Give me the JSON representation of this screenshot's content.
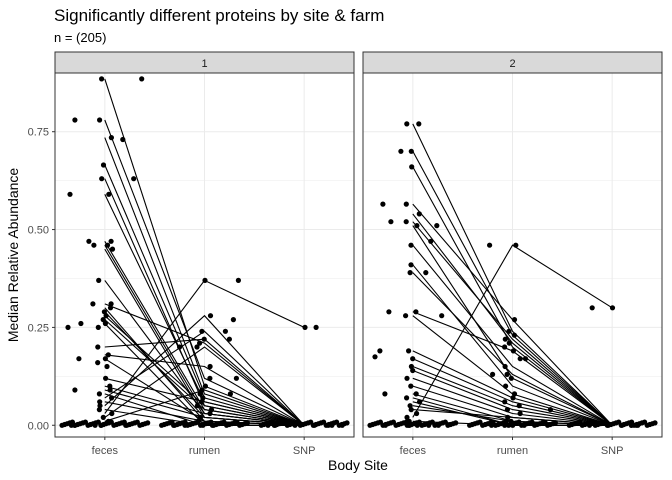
{
  "chart_data": {
    "type": "scatter",
    "title": "Significantly different proteins by site & farm",
    "subtitle": "n = (205)",
    "xlabel": "Body Site",
    "ylabel": "Median Relative Abundance",
    "categories": [
      "feces",
      "rumen",
      "SNP"
    ],
    "ylim": [
      -0.03,
      0.9
    ],
    "yticks": [
      0.0,
      0.25,
      0.5,
      0.75
    ],
    "ytick_labels": [
      "0.00",
      "0.25",
      "0.50",
      "0.75"
    ],
    "grid": true,
    "colors": {
      "points": "#000000",
      "lines": "#000000",
      "strip": "#d9d9d9",
      "grid": "#ebebeb",
      "border": "#333333"
    },
    "facets": [
      {
        "label": "1",
        "points": {
          "feces": [
            0.885,
            0.78,
            0.735,
            0.665,
            0.63,
            0.59,
            0.47,
            0.46,
            0.45,
            0.37,
            0.31,
            0.3,
            0.29,
            0.28,
            0.27,
            0.26,
            0.25,
            0.2,
            0.18,
            0.17,
            0.16,
            0.15,
            0.12,
            0.1,
            0.09,
            0.08,
            0.07,
            0.06,
            0.05,
            0.04,
            0.03,
            0.02,
            0.01,
            0.0,
            0.0,
            0.0,
            0.0,
            0.0
          ],
          "rumen": [
            0.37,
            0.28,
            0.24,
            0.22,
            0.21,
            0.2,
            0.15,
            0.12,
            0.1,
            0.09,
            0.08,
            0.07,
            0.06,
            0.05,
            0.04,
            0.03,
            0.02,
            0.01,
            0.0,
            0.0,
            0.0,
            0.0
          ],
          "SNP": [
            0.25,
            0.0,
            0.0,
            0.0,
            0.0,
            0.0,
            0.0,
            0.0
          ]
        },
        "outliers": [
          {
            "site": "feces",
            "offset": -0.35,
            "value": 0.59
          },
          {
            "site": "feces",
            "offset": -0.3,
            "value": 0.78
          },
          {
            "site": "feces",
            "offset": -0.16,
            "value": 0.47
          },
          {
            "site": "feces",
            "offset": -0.11,
            "value": 0.46
          },
          {
            "site": "feces",
            "offset": -0.37,
            "value": 0.25
          },
          {
            "site": "feces",
            "offset": -0.24,
            "value": 0.26
          },
          {
            "site": "feces",
            "offset": -0.12,
            "value": 0.31
          },
          {
            "site": "feces",
            "offset": 0.18,
            "value": 0.73
          },
          {
            "site": "feces",
            "offset": 0.37,
            "value": 0.885
          },
          {
            "site": "feces",
            "offset": 0.29,
            "value": 0.63
          },
          {
            "site": "feces",
            "offset": -0.26,
            "value": 0.17
          },
          {
            "site": "feces",
            "offset": -0.3,
            "value": 0.09
          },
          {
            "site": "rumen",
            "offset": 0.34,
            "value": 0.37
          },
          {
            "site": "rumen",
            "offset": 0.29,
            "value": 0.27
          },
          {
            "site": "rumen",
            "offset": 0.25,
            "value": 0.22
          },
          {
            "site": "rumen",
            "offset": 0.21,
            "value": 0.24
          },
          {
            "site": "rumen",
            "offset": 0.32,
            "value": 0.12
          },
          {
            "site": "rumen",
            "offset": -0.25,
            "value": 0.2
          },
          {
            "site": "rumen",
            "offset": 0.26,
            "value": 0.08
          },
          {
            "site": "SNP",
            "offset": 0.12,
            "value": 0.25
          }
        ],
        "lines": [
          [
            0.885,
            0.1,
            0.0
          ],
          [
            0.78,
            0.12,
            0.0
          ],
          [
            0.735,
            0.08,
            0.0
          ],
          [
            0.665,
            0.07,
            0.0
          ],
          [
            0.63,
            0.05,
            0.0
          ],
          [
            0.59,
            0.06,
            0.0
          ],
          [
            0.47,
            0.04,
            0.0
          ],
          [
            0.46,
            0.03,
            0.0
          ],
          [
            0.45,
            0.02,
            0.0
          ],
          [
            0.37,
            0.03,
            0.0
          ],
          [
            0.31,
            0.21,
            0.0
          ],
          [
            0.3,
            0.01,
            0.0
          ],
          [
            0.29,
            0.02,
            0.0
          ],
          [
            0.28,
            0.05,
            0.0
          ],
          [
            0.27,
            0.04,
            0.0
          ],
          [
            0.26,
            0.0,
            0.0
          ],
          [
            0.2,
            0.22,
            0.0
          ],
          [
            0.18,
            0.15,
            0.0
          ],
          [
            0.17,
            0.01,
            0.0
          ],
          [
            0.12,
            0.06,
            0.0
          ],
          [
            0.1,
            0.03,
            0.0
          ],
          [
            0.09,
            0.02,
            0.0
          ],
          [
            0.08,
            0.0,
            0.0
          ],
          [
            0.07,
            0.24,
            0.0
          ],
          [
            0.06,
            0.01,
            0.0
          ],
          [
            0.05,
            0.28,
            0.0
          ],
          [
            0.04,
            0.0,
            0.0
          ],
          [
            0.03,
            0.37,
            0.25
          ],
          [
            0.02,
            0.2,
            0.0
          ],
          [
            0.01,
            0.09,
            0.0
          ]
        ]
      },
      {
        "label": "2",
        "points": {
          "feces": [
            0.77,
            0.7,
            0.66,
            0.565,
            0.54,
            0.52,
            0.51,
            0.46,
            0.41,
            0.39,
            0.29,
            0.28,
            0.19,
            0.17,
            0.15,
            0.14,
            0.12,
            0.1,
            0.08,
            0.07,
            0.06,
            0.05,
            0.04,
            0.03,
            0.02,
            0.01,
            0.0,
            0.0,
            0.0,
            0.0,
            0.0,
            0.0
          ],
          "rumen": [
            0.46,
            0.27,
            0.24,
            0.23,
            0.22,
            0.21,
            0.2,
            0.19,
            0.17,
            0.15,
            0.13,
            0.12,
            0.1,
            0.08,
            0.07,
            0.06,
            0.05,
            0.04,
            0.03,
            0.02,
            0.01,
            0.0,
            0.0,
            0.0,
            0.0
          ],
          "SNP": [
            0.3,
            0.0,
            0.0,
            0.0,
            0.0,
            0.0,
            0.0,
            0.0
          ]
        },
        "outliers": [
          {
            "site": "feces",
            "offset": -0.3,
            "value": 0.565
          },
          {
            "site": "feces",
            "offset": -0.22,
            "value": 0.52
          },
          {
            "site": "feces",
            "offset": -0.12,
            "value": 0.7
          },
          {
            "site": "feces",
            "offset": 0.06,
            "value": 0.77
          },
          {
            "site": "feces",
            "offset": 0.18,
            "value": 0.47
          },
          {
            "site": "feces",
            "offset": 0.24,
            "value": 0.51
          },
          {
            "site": "feces",
            "offset": -0.38,
            "value": 0.175
          },
          {
            "site": "feces",
            "offset": -0.33,
            "value": 0.19
          },
          {
            "site": "feces",
            "offset": -0.28,
            "value": 0.08
          },
          {
            "site": "feces",
            "offset": -0.24,
            "value": 0.29
          },
          {
            "site": "feces",
            "offset": 0.29,
            "value": 0.28
          },
          {
            "site": "feces",
            "offset": 0.13,
            "value": 0.39
          },
          {
            "site": "rumen",
            "offset": -0.23,
            "value": 0.46
          },
          {
            "site": "rumen",
            "offset": 0.13,
            "value": 0.17
          },
          {
            "site": "rumen",
            "offset": -0.2,
            "value": 0.13
          },
          {
            "site": "rumen",
            "offset": 0.38,
            "value": 0.04
          },
          {
            "site": "SNP",
            "offset": -0.2,
            "value": 0.3
          }
        ],
        "lines": [
          [
            0.77,
            0.24,
            0.0
          ],
          [
            0.7,
            0.23,
            0.0
          ],
          [
            0.66,
            0.2,
            0.0
          ],
          [
            0.565,
            0.27,
            0.0
          ],
          [
            0.54,
            0.21,
            0.0
          ],
          [
            0.52,
            0.22,
            0.0
          ],
          [
            0.51,
            0.12,
            0.0
          ],
          [
            0.46,
            0.15,
            0.0
          ],
          [
            0.41,
            0.1,
            0.0
          ],
          [
            0.39,
            0.13,
            0.0
          ],
          [
            0.29,
            0.19,
            0.0
          ],
          [
            0.28,
            0.08,
            0.0
          ],
          [
            0.19,
            0.07,
            0.0
          ],
          [
            0.17,
            0.06,
            0.0
          ],
          [
            0.15,
            0.05,
            0.0
          ],
          [
            0.14,
            0.04,
            0.0
          ],
          [
            0.12,
            0.03,
            0.0
          ],
          [
            0.1,
            0.02,
            0.0
          ],
          [
            0.08,
            0.01,
            0.0
          ],
          [
            0.07,
            0.0,
            0.0
          ],
          [
            0.06,
            0.0,
            0.0
          ],
          [
            0.05,
            0.01,
            0.0
          ],
          [
            0.04,
            0.02,
            0.0
          ],
          [
            0.02,
            0.46,
            0.3
          ],
          [
            0.01,
            0.0,
            0.0
          ]
        ]
      }
    ]
  }
}
